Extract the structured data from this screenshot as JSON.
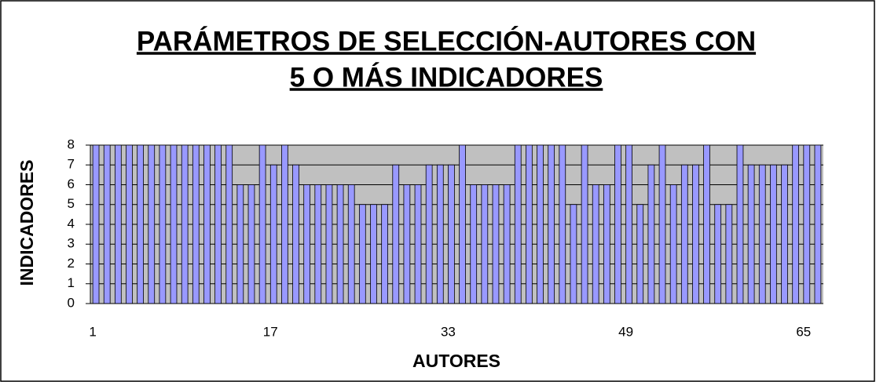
{
  "chart_data": {
    "type": "bar",
    "title": [
      "PARÁMETROS DE SELECCIÓN-AUTORES CON",
      "5 O MÁS INDICADORES"
    ],
    "x_label": "AUTORES",
    "y_label": "INDICADORES",
    "categories": [
      "1",
      null,
      null,
      null,
      null,
      null,
      null,
      null,
      null,
      null,
      null,
      null,
      null,
      null,
      null,
      null,
      "17",
      null,
      null,
      null,
      null,
      null,
      null,
      null,
      null,
      null,
      null,
      null,
      null,
      null,
      null,
      null,
      "33",
      null,
      null,
      null,
      null,
      null,
      null,
      null,
      null,
      null,
      null,
      null,
      null,
      null,
      null,
      null,
      "49",
      null,
      null,
      null,
      null,
      null,
      null,
      null,
      null,
      null,
      null,
      null,
      null,
      null,
      null,
      null,
      "65",
      null
    ],
    "values": [
      8,
      8,
      8,
      8,
      8,
      8,
      8,
      8,
      8,
      8,
      8,
      8,
      8,
      6,
      6,
      8,
      7,
      8,
      7,
      6,
      6,
      6,
      6,
      6,
      5,
      5,
      5,
      7,
      6,
      6,
      7,
      7,
      7,
      8,
      6,
      6,
      6,
      6,
      8,
      8,
      8,
      8,
      8,
      5,
      8,
      6,
      6,
      8,
      8,
      5,
      7,
      8,
      6,
      7,
      7,
      8,
      5,
      5,
      8,
      7,
      7,
      7,
      7,
      8,
      8,
      8
    ],
    "color": "#9999ff",
    "plot_background": "#c0c0c0",
    "ylim": [
      0,
      8
    ],
    "yticks": [
      0,
      1,
      2,
      3,
      4,
      5,
      6,
      7,
      8
    ],
    "grid": true
  }
}
